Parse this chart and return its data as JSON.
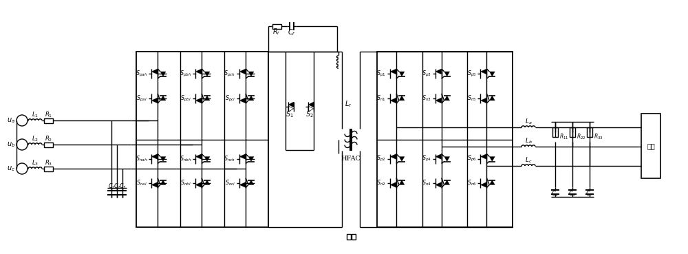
{
  "bg": "#ffffff",
  "lc": "#000000",
  "figsize": [
    10.0,
    3.69
  ],
  "dpi": 100,
  "load_label": "负载"
}
